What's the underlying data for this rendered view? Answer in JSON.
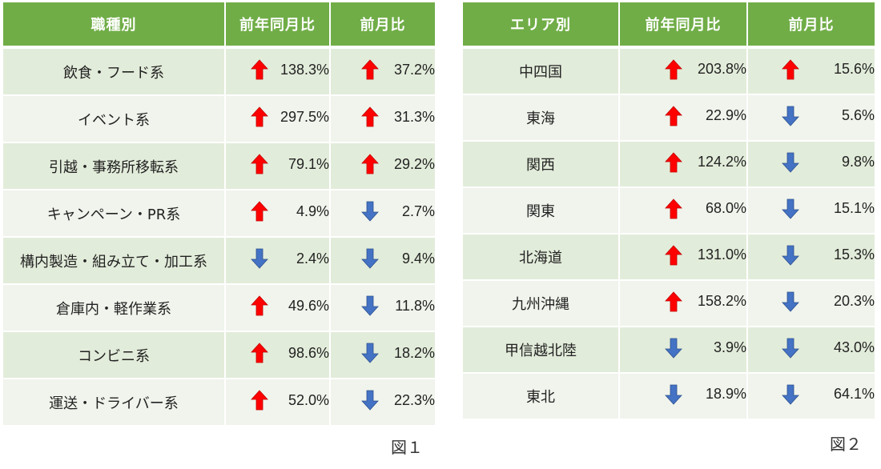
{
  "table1": {
    "headers": [
      "職種別",
      "前年同月比",
      "前月比"
    ],
    "rows": [
      {
        "name": "飲食・フード系",
        "yoy": {
          "dir": "up",
          "value": "138.3%"
        },
        "mom": {
          "dir": "up",
          "value": "37.2%"
        }
      },
      {
        "name": "イベント系",
        "yoy": {
          "dir": "up",
          "value": "297.5%"
        },
        "mom": {
          "dir": "up",
          "value": "31.3%"
        }
      },
      {
        "name": "引越・事務所移転系",
        "yoy": {
          "dir": "up",
          "value": "79.1%"
        },
        "mom": {
          "dir": "up",
          "value": "29.2%"
        }
      },
      {
        "name": "キャンペーン・PR系",
        "yoy": {
          "dir": "up",
          "value": "4.9%"
        },
        "mom": {
          "dir": "down",
          "value": "2.7%"
        }
      },
      {
        "name": "構内製造・組み立て・加工系",
        "yoy": {
          "dir": "down",
          "value": "2.4%"
        },
        "mom": {
          "dir": "down",
          "value": "9.4%"
        }
      },
      {
        "name": "倉庫内・軽作業系",
        "yoy": {
          "dir": "up",
          "value": "49.6%"
        },
        "mom": {
          "dir": "down",
          "value": "11.8%"
        }
      },
      {
        "name": "コンビニ系",
        "yoy": {
          "dir": "up",
          "value": "98.6%"
        },
        "mom": {
          "dir": "down",
          "value": "18.2%"
        }
      },
      {
        "name": "運送・ドライバー系",
        "yoy": {
          "dir": "up",
          "value": "52.0%"
        },
        "mom": {
          "dir": "down",
          "value": "22.3%"
        }
      }
    ],
    "caption": "図１"
  },
  "table2": {
    "headers": [
      "エリア別",
      "前年同月比",
      "前月比"
    ],
    "rows": [
      {
        "name": "中四国",
        "yoy": {
          "dir": "up",
          "value": "203.8%"
        },
        "mom": {
          "dir": "up",
          "value": "15.6%"
        }
      },
      {
        "name": "東海",
        "yoy": {
          "dir": "up",
          "value": "22.9%"
        },
        "mom": {
          "dir": "down",
          "value": "5.6%"
        }
      },
      {
        "name": "関西",
        "yoy": {
          "dir": "up",
          "value": "124.2%"
        },
        "mom": {
          "dir": "down",
          "value": "9.8%"
        }
      },
      {
        "name": "関東",
        "yoy": {
          "dir": "up",
          "value": "68.0%"
        },
        "mom": {
          "dir": "down",
          "value": "15.1%"
        }
      },
      {
        "name": "北海道",
        "yoy": {
          "dir": "up",
          "value": "131.0%"
        },
        "mom": {
          "dir": "down",
          "value": "15.3%"
        }
      },
      {
        "name": "九州沖縄",
        "yoy": {
          "dir": "up",
          "value": "158.2%"
        },
        "mom": {
          "dir": "down",
          "value": "20.3%"
        }
      },
      {
        "name": "甲信越北陸",
        "yoy": {
          "dir": "down",
          "value": "3.9%"
        },
        "mom": {
          "dir": "down",
          "value": "43.0%"
        }
      },
      {
        "name": "東北",
        "yoy": {
          "dir": "down",
          "value": "18.9%"
        },
        "mom": {
          "dir": "down",
          "value": "64.1%"
        }
      }
    ],
    "caption": "図２"
  },
  "colors": {
    "header_bg": "#70ad47",
    "row_odd": "#e2ecda",
    "row_even": "#f0f4ec",
    "arrow_up": "#ff0000",
    "arrow_down": "#4472c4"
  },
  "icons": {
    "up": "arrow-up-icon",
    "down": "arrow-down-icon"
  }
}
